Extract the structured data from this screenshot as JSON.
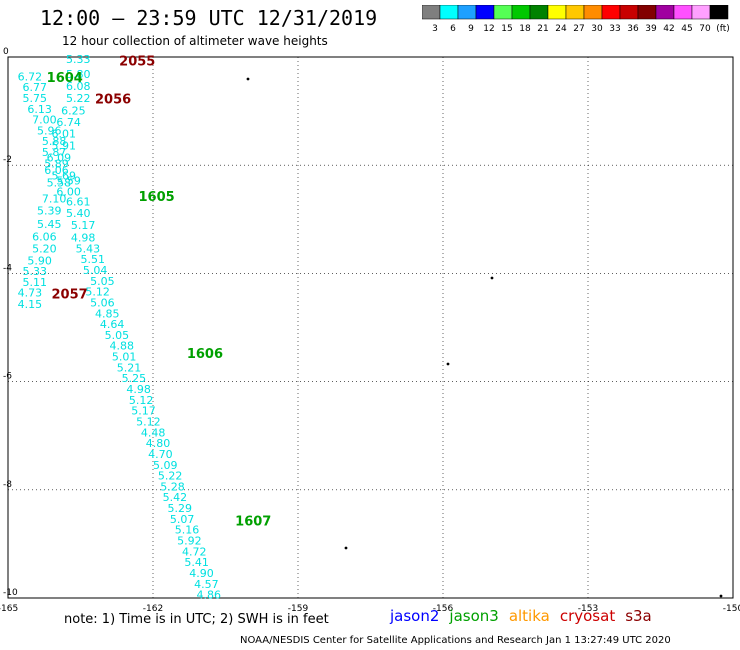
{
  "title": "12:00 – 23:59 UTC 12/31/2019",
  "subtitle": "12 hour collection of altimeter wave heights",
  "note": "note:  1) Time is in UTC;  2) SWH is in feet",
  "credit": "NOAA/NESDIS Center for Satellite Applications and Research     Jan  1 13:27:49 UTC 2020",
  "color_scale": {
    "labels": [
      "3",
      "6",
      "9",
      "12",
      "15",
      "18",
      "21",
      "24",
      "27",
      "30",
      "33",
      "36",
      "39",
      "42",
      "45",
      "70",
      "(ft)"
    ],
    "colors": [
      "#7f7f7f",
      "#00ffff",
      "#1ea0ff",
      "#0000ff",
      "#55ff55",
      "#00c800",
      "#008200",
      "#ffff00",
      "#ffc800",
      "#ff8c00",
      "#ff0000",
      "#c80000",
      "#820000",
      "#a000a0",
      "#ff50ff",
      "#ffa0ff",
      "#000000"
    ]
  },
  "satellites": [
    {
      "name": "jason2",
      "color": "#0000ff"
    },
    {
      "name": "jason3",
      "color": "#00a000"
    },
    {
      "name": "altika",
      "color": "#ff9900"
    },
    {
      "name": "cryosat",
      "color": "#cc0000"
    },
    {
      "name": "s3a",
      "color": "#8b0000"
    }
  ],
  "chart_data": {
    "type": "scatter",
    "xlim": [
      -165,
      -150
    ],
    "ylim": [
      -10,
      0
    ],
    "x_ticks": [
      "-165",
      "-162",
      "-159",
      "-156",
      "-153",
      "-150"
    ],
    "y_ticks": [
      "0",
      "-2",
      "-4",
      "-6",
      "-8",
      "-10"
    ],
    "time_labels": [
      {
        "text": "2055",
        "color": "#8b0000",
        "x": -162.7,
        "y": -0.05
      },
      {
        "text": "1604",
        "color": "#00a000",
        "x": -164.2,
        "y": -0.35
      },
      {
        "text": "2056",
        "color": "#8b0000",
        "x": -163.2,
        "y": -0.75
      },
      {
        "text": "1605",
        "color": "#00a000",
        "x": -162.3,
        "y": -2.55
      },
      {
        "text": "2057",
        "color": "#8b0000",
        "x": -164.1,
        "y": -4.35
      },
      {
        "text": "1606",
        "color": "#00a000",
        "x": -161.3,
        "y": -5.45
      },
      {
        "text": "1607",
        "color": "#00a000",
        "x": -160.3,
        "y": -8.55
      }
    ],
    "swh_points": [
      {
        "v": "5.33",
        "x": -163.8,
        "y": 0.0
      },
      {
        "v": "6.72",
        "x": -164.8,
        "y": -0.32
      },
      {
        "v": "5.80",
        "x": -163.8,
        "y": -0.28
      },
      {
        "v": "6.77",
        "x": -164.7,
        "y": -0.52
      },
      {
        "v": "6.08",
        "x": -163.8,
        "y": -0.5
      },
      {
        "v": "5.75",
        "x": -164.7,
        "y": -0.72
      },
      {
        "v": "5.22",
        "x": -163.8,
        "y": -0.72
      },
      {
        "v": "6.13",
        "x": -164.6,
        "y": -0.92
      },
      {
        "v": "6.25",
        "x": -163.9,
        "y": -0.95
      },
      {
        "v": "7.00",
        "x": -164.5,
        "y": -1.12
      },
      {
        "v": "6.74",
        "x": -164.0,
        "y": -1.16
      },
      {
        "v": "5.96",
        "x": -164.4,
        "y": -1.32
      },
      {
        "v": "6.01",
        "x": -164.1,
        "y": -1.38
      },
      {
        "v": "5.88",
        "x": -164.3,
        "y": -1.52
      },
      {
        "v": "5.91",
        "x": -164.1,
        "y": -1.6
      },
      {
        "v": "5.87",
        "x": -164.3,
        "y": -1.72
      },
      {
        "v": "6.09",
        "x": -164.2,
        "y": -1.82
      },
      {
        "v": "5.89",
        "x": -164.25,
        "y": -1.93
      },
      {
        "v": "6.06",
        "x": -164.25,
        "y": -2.05
      },
      {
        "v": "5.69",
        "x": -164.1,
        "y": -2.15
      },
      {
        "v": "5.58",
        "x": -164.2,
        "y": -2.28
      },
      {
        "v": "5.59",
        "x": -164.0,
        "y": -2.25
      },
      {
        "v": "6.00",
        "x": -164.0,
        "y": -2.45
      },
      {
        "v": "7.10",
        "x": -164.3,
        "y": -2.58
      },
      {
        "v": "6.61",
        "x": -163.8,
        "y": -2.63
      },
      {
        "v": "5.39",
        "x": -164.4,
        "y": -2.8
      },
      {
        "v": "5.40",
        "x": -163.8,
        "y": -2.85
      },
      {
        "v": "5.45",
        "x": -164.4,
        "y": -3.05
      },
      {
        "v": "5.17",
        "x": -163.7,
        "y": -3.07
      },
      {
        "v": "6.06",
        "x": -164.5,
        "y": -3.28
      },
      {
        "v": "4.98",
        "x": -163.7,
        "y": -3.3
      },
      {
        "v": "5.20",
        "x": -164.5,
        "y": -3.5
      },
      {
        "v": "5.43",
        "x": -163.6,
        "y": -3.5
      },
      {
        "v": "5.90",
        "x": -164.6,
        "y": -3.72
      },
      {
        "v": "5.51",
        "x": -163.5,
        "y": -3.7
      },
      {
        "v": "5.33",
        "x": -164.7,
        "y": -3.92
      },
      {
        "v": "5.04",
        "x": -163.45,
        "y": -3.9
      },
      {
        "v": "5.05",
        "x": -163.3,
        "y": -4.1
      },
      {
        "v": "5.11",
        "x": -164.7,
        "y": -4.12
      },
      {
        "v": "5.12",
        "x": -163.4,
        "y": -4.3
      },
      {
        "v": "4.73",
        "x": -164.8,
        "y": -4.32
      },
      {
        "v": "5.06",
        "x": -163.3,
        "y": -4.5
      },
      {
        "v": "4.15",
        "x": -164.8,
        "y": -4.53
      },
      {
        "v": "4.85",
        "x": -163.2,
        "y": -4.7
      },
      {
        "v": "4.64",
        "x": -163.1,
        "y": -4.9
      },
      {
        "v": "5.05",
        "x": -163.0,
        "y": -5.1
      },
      {
        "v": "4.88",
        "x": -162.9,
        "y": -5.3
      },
      {
        "v": "5.01",
        "x": -162.85,
        "y": -5.5
      },
      {
        "v": "5.21",
        "x": -162.75,
        "y": -5.7
      },
      {
        "v": "5.25",
        "x": -162.65,
        "y": -5.9
      },
      {
        "v": "4.98",
        "x": -162.55,
        "y": -6.1
      },
      {
        "v": "5.12",
        "x": -162.5,
        "y": -6.3
      },
      {
        "v": "5.17",
        "x": -162.45,
        "y": -6.5
      },
      {
        "v": "5.12",
        "x": -162.35,
        "y": -6.7
      },
      {
        "v": "4.48",
        "x": -162.25,
        "y": -6.9
      },
      {
        "v": "4.80",
        "x": -162.15,
        "y": -7.1
      },
      {
        "v": "4.70",
        "x": -162.1,
        "y": -7.3
      },
      {
        "v": "5.09",
        "x": -162.0,
        "y": -7.5
      },
      {
        "v": "5.22",
        "x": -161.9,
        "y": -7.7
      },
      {
        "v": "5.28",
        "x": -161.85,
        "y": -7.9
      },
      {
        "v": "5.42",
        "x": -161.8,
        "y": -8.1
      },
      {
        "v": "5.29",
        "x": -161.7,
        "y": -8.3
      },
      {
        "v": "5.07",
        "x": -161.65,
        "y": -8.5
      },
      {
        "v": "5.16",
        "x": -161.55,
        "y": -8.7
      },
      {
        "v": "5.92",
        "x": -161.5,
        "y": -8.9
      },
      {
        "v": "4.72",
        "x": -161.4,
        "y": -9.1
      },
      {
        "v": "5.41",
        "x": -161.35,
        "y": -9.3
      },
      {
        "v": "4.90",
        "x": -161.25,
        "y": -9.5
      },
      {
        "v": "4.57",
        "x": -161.15,
        "y": -9.7
      },
      {
        "v": "4.86",
        "x": -161.1,
        "y": -9.9
      }
    ]
  }
}
